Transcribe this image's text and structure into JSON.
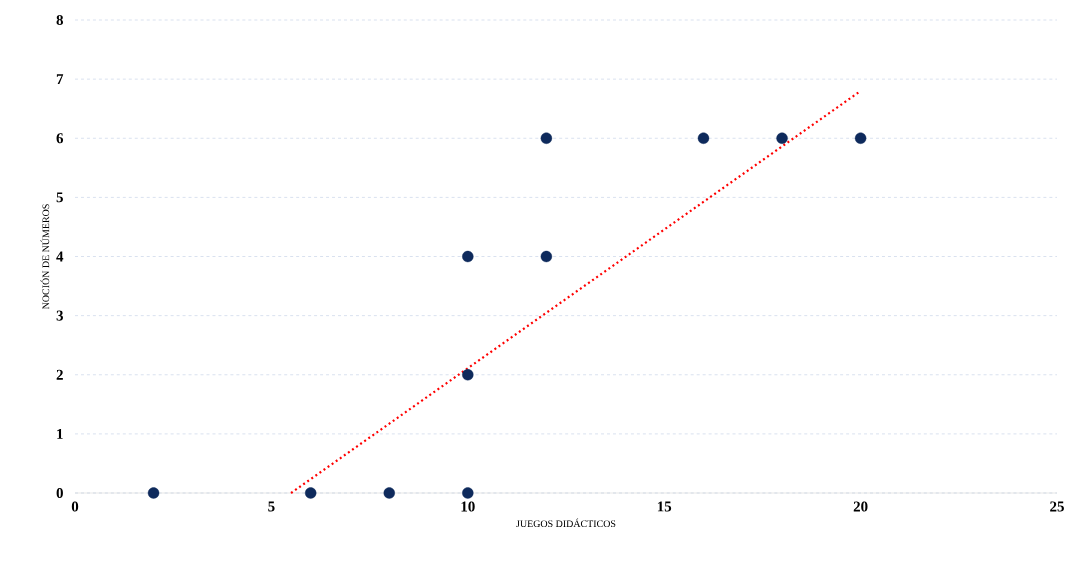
{
  "chart_data": {
    "type": "scatter",
    "xlabel": "JUEGOS DIDÁCTICOS",
    "ylabel": "NOCIÓN DE NÚMEROS",
    "series": [
      {
        "color": "#0e2a5c",
        "marker": "circle",
        "x": [
          2,
          6,
          8,
          10,
          10,
          10,
          12,
          12,
          16,
          18,
          20
        ],
        "values": [
          0,
          0,
          0,
          0,
          2,
          4,
          4,
          6,
          6,
          6,
          6
        ]
      },
      {
        "type": "line",
        "color": "#ff0000",
        "line_style": "dotted",
        "marker": "none",
        "x": [
          5.5,
          20
        ],
        "values": [
          0,
          6.8
        ]
      }
    ],
    "xlim": [
      0,
      25
    ],
    "xticks": [
      0,
      5,
      10,
      15,
      20,
      25
    ],
    "ylim": [
      0,
      8
    ],
    "yticks": [
      0,
      1,
      2,
      3,
      4,
      5,
      6,
      7,
      8
    ],
    "grid": "y"
  }
}
